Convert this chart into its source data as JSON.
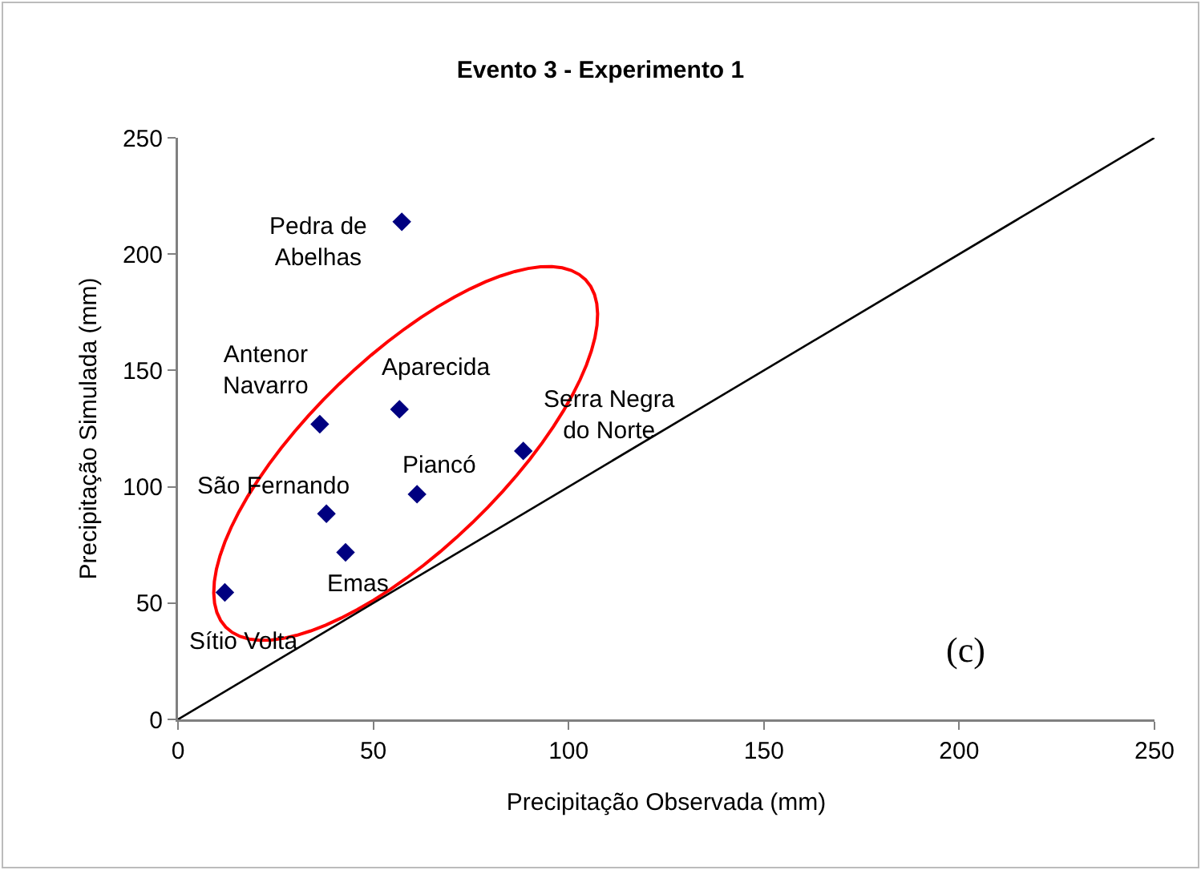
{
  "chart_data": {
    "type": "scatter",
    "title": "Evento 3 - Experimento 1",
    "xlabel": "Precipitação Observada (mm)",
    "ylabel": "Precipitação Simulada (mm)",
    "series": [
      {
        "type": "scatter",
        "color": "#000080",
        "marker": "diamond",
        "x": [
          57.3,
          36.3,
          56.7,
          88.4,
          61.2,
          38,
          42.9,
          12
        ],
        "values": [
          213.9,
          126.9,
          133.3,
          115.4,
          96.8,
          88.4,
          71.8,
          54.6
        ]
      },
      {
        "type": "line",
        "color": "#000000",
        "line_style": "solid",
        "marker": "none",
        "x": [
          0,
          250
        ],
        "values": [
          0,
          250
        ]
      }
    ],
    "annotations": [
      {
        "text": "Pedra de\nAbelhas",
        "x": 57.3,
        "y": 213.9
      },
      {
        "text": "Antenor\nNavarro",
        "x": 36.3,
        "y": 126.9
      },
      {
        "text": "Aparecida",
        "x": 56.7,
        "y": 133.3
      },
      {
        "text": "Serra Negra\ndo Norte",
        "x": 88.4,
        "y": 115.4
      },
      {
        "text": "Piancó",
        "x": 61.2,
        "y": 96.8
      },
      {
        "text": "São Fernando",
        "x": 38,
        "y": 88.4
      },
      {
        "text": "Emas",
        "x": 42.9,
        "y": 71.8
      },
      {
        "text": "Sítio Volta",
        "x": 12,
        "y": 54.6
      },
      "(c)"
    ],
    "xlim": [
      0,
      250
    ],
    "xticks": [
      0,
      50,
      100,
      150,
      200,
      250
    ],
    "ylim": [
      0,
      250
    ],
    "yticks": [
      0,
      50,
      100,
      150,
      200,
      250
    ],
    "grid": false
  }
}
